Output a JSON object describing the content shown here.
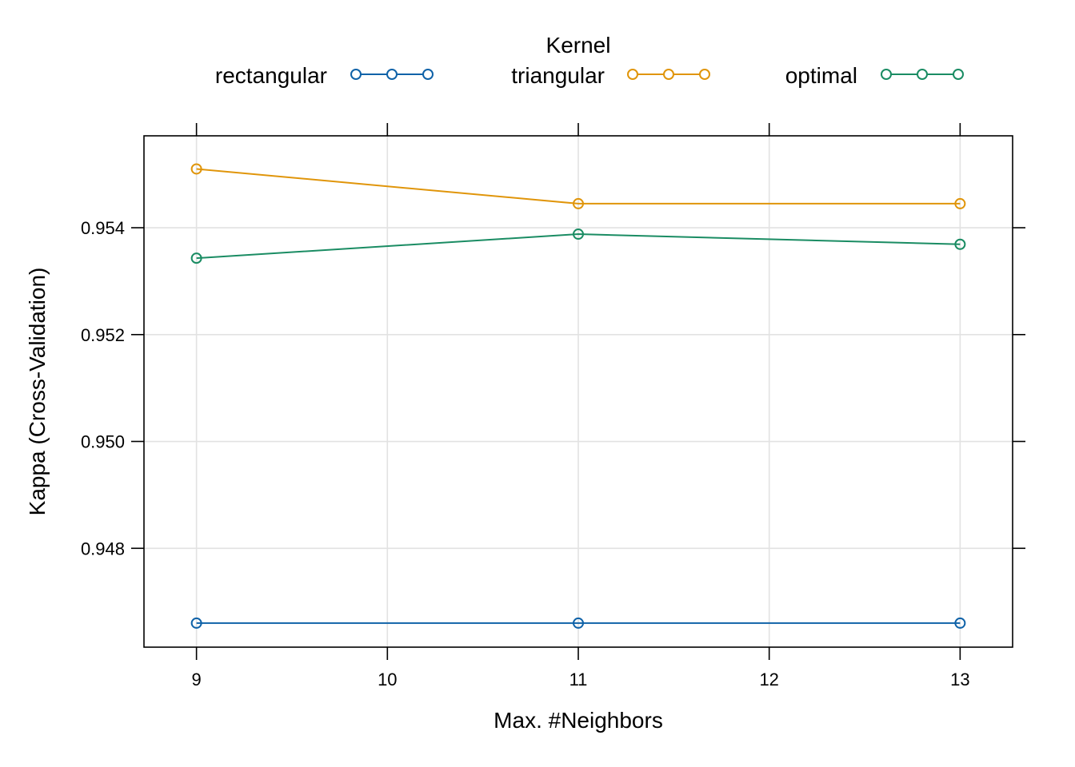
{
  "chart_data": {
    "type": "line",
    "title": "",
    "xlabel": "Max. #Neighbors",
    "ylabel": "Kappa (Cross-Validation)",
    "legend_title": "Kernel",
    "legend_position": "top",
    "grid": true,
    "x": [
      9,
      11,
      13
    ],
    "xticks": [
      9,
      10,
      11,
      12,
      13
    ],
    "yticks": [
      0.948,
      0.95,
      0.952,
      0.954
    ],
    "ytick_labels": [
      "0.948",
      "0.950",
      "0.952",
      "0.954"
    ],
    "xlim": [
      8.725,
      13.275
    ],
    "ylim": [
      0.94615,
      0.95572
    ],
    "series": [
      {
        "name": "rectangular",
        "color": "#0F62A8",
        "values": [
          0.9466,
          0.9466,
          0.9466
        ]
      },
      {
        "name": "triangular",
        "color": "#E0950A",
        "values": [
          0.9551,
          0.95445,
          0.95445
        ]
      },
      {
        "name": "optimal",
        "color": "#1A8C63",
        "values": [
          0.95343,
          0.95388,
          0.95369
        ]
      }
    ]
  }
}
